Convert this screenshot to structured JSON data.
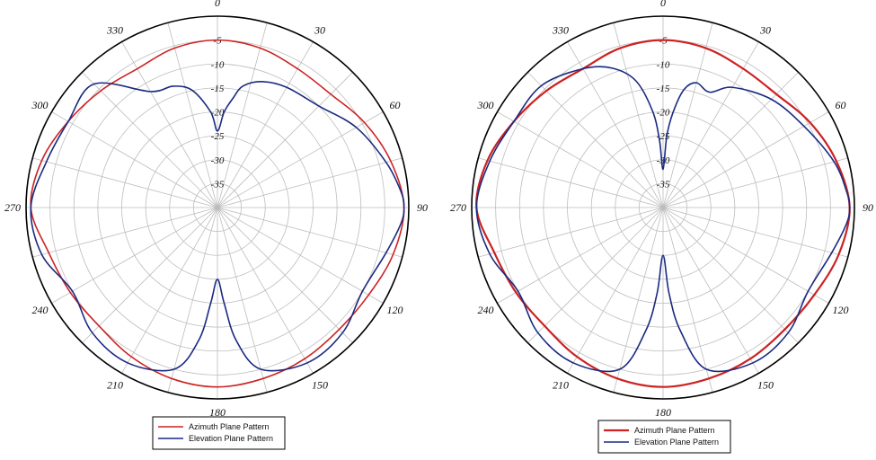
{
  "chart_data": [
    {
      "type": "polar-line",
      "angle_labels": [
        "0",
        "30",
        "60",
        "90",
        "120",
        "150",
        "180",
        "210",
        "240",
        "270",
        "300",
        "330"
      ],
      "ring_labels": [
        "-5",
        "-10",
        "-15",
        "-20",
        "-25",
        "-30",
        "-35"
      ],
      "r_range_db": [
        -40,
        0
      ],
      "grid": true,
      "legend_position": "bottom-center",
      "series": [
        {
          "name": "Azimuth Plane Pattern",
          "color": "#cc2222",
          "angles": [
            0,
            15,
            30,
            45,
            60,
            75,
            90,
            105,
            120,
            135,
            150,
            165,
            180,
            195,
            210,
            225,
            240,
            255,
            270,
            285,
            300,
            315,
            330,
            345
          ],
          "values": [
            -5,
            -5.5,
            -6.5,
            -6.5,
            -4.5,
            -2.5,
            -1,
            -2,
            -3.5,
            -4,
            -3.5,
            -3,
            -2.5,
            -3,
            -4,
            -5,
            -4.5,
            -3.5,
            -1,
            -2,
            -4,
            -5.5,
            -6.5,
            -5.5
          ]
        },
        {
          "name": "Elevation Plane Pattern",
          "color": "#1a2a80",
          "angles": [
            0,
            4,
            8,
            12,
            20,
            30,
            45,
            60,
            75,
            85,
            90,
            95,
            105,
            120,
            135,
            150,
            165,
            172,
            176,
            180,
            184,
            188,
            195,
            210,
            225,
            240,
            255,
            270,
            285,
            300,
            315,
            330,
            340,
            348,
            356
          ],
          "values": [
            -24,
            -20,
            -17,
            -14,
            -12,
            -11,
            -10,
            -6.5,
            -3.5,
            -1.5,
            -1,
            -1.5,
            -3.5,
            -5,
            -3,
            -2.5,
            -5,
            -12,
            -20,
            -25,
            -20,
            -12,
            -5,
            -2.5,
            -3,
            -5,
            -2,
            -1,
            -3,
            -4,
            -3.5,
            -12,
            -13,
            -15,
            -20
          ]
        }
      ]
    },
    {
      "type": "polar-line",
      "angle_labels": [
        "0",
        "30",
        "60",
        "90",
        "120",
        "150",
        "180",
        "210",
        "240",
        "270",
        "300",
        "330"
      ],
      "ring_labels": [
        "-5",
        "-10",
        "-15",
        "-20",
        "-25",
        "-30",
        "-35"
      ],
      "r_range_db": [
        -40,
        0
      ],
      "grid": true,
      "legend_position": "bottom-center",
      "series": [
        {
          "name": "Azimuth Plane Pattern",
          "color": "#cc2222",
          "angles": [
            0,
            15,
            30,
            45,
            60,
            75,
            90,
            105,
            120,
            135,
            150,
            165,
            180,
            195,
            210,
            225,
            240,
            255,
            270,
            285,
            300,
            315,
            330,
            345
          ],
          "values": [
            -5,
            -5.5,
            -6.5,
            -6.5,
            -4.5,
            -2.5,
            -1,
            -2,
            -3.5,
            -4,
            -3.5,
            -3,
            -2.5,
            -3,
            -4,
            -5,
            -4.5,
            -3.5,
            -1,
            -2,
            -4,
            -5.5,
            -6.5,
            -5.5
          ]
        },
        {
          "name": "Elevation Plane Pattern",
          "color": "#1a2a80",
          "angles": [
            0,
            3,
            6,
            10,
            15,
            22,
            30,
            45,
            60,
            75,
            85,
            90,
            95,
            105,
            120,
            135,
            150,
            165,
            172,
            176,
            180,
            184,
            188,
            195,
            210,
            225,
            240,
            255,
            270,
            285,
            300,
            315,
            330,
            340,
            348,
            354,
            357
          ],
          "values": [
            -32,
            -25,
            -20,
            -15,
            -13,
            -14,
            -11,
            -8,
            -6,
            -3,
            -1.5,
            -1,
            -1.5,
            -3.5,
            -5,
            -3,
            -2.5,
            -5,
            -14,
            -22,
            -30,
            -22,
            -14,
            -5,
            -2.5,
            -3,
            -5,
            -2.5,
            -1,
            -2.5,
            -4,
            -4,
            -6.5,
            -9,
            -13,
            -20,
            -26
          ]
        }
      ]
    }
  ]
}
